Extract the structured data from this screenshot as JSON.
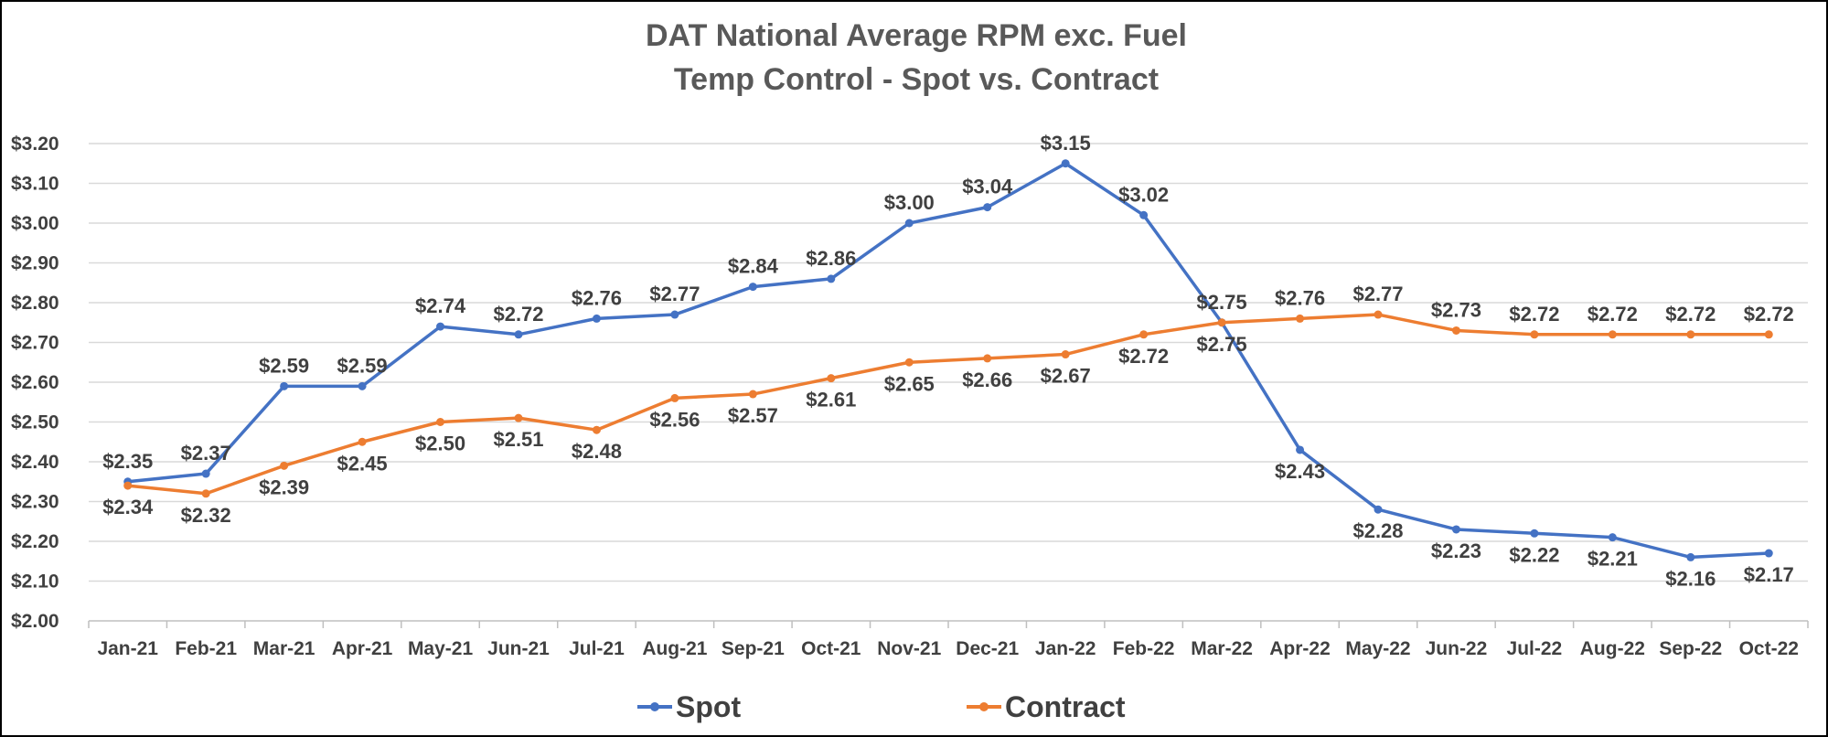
{
  "chart_data": {
    "type": "line",
    "title": "DAT National Average RPM exc. Fuel",
    "subtitle": "Temp Control - Spot vs. Contract",
    "xlabel": "",
    "ylabel": "",
    "categories": [
      "Jan-21",
      "Feb-21",
      "Mar-21",
      "Apr-21",
      "May-21",
      "Jun-21",
      "Jul-21",
      "Aug-21",
      "Sep-21",
      "Oct-21",
      "Nov-21",
      "Dec-21",
      "Jan-22",
      "Feb-22",
      "Mar-22",
      "Apr-22",
      "May-22",
      "Jun-22",
      "Jul-22",
      "Aug-22",
      "Sep-22",
      "Oct-22"
    ],
    "y_ticks": [
      "$2.00",
      "$2.10",
      "$2.20",
      "$2.30",
      "$2.40",
      "$2.50",
      "$2.60",
      "$2.70",
      "$2.80",
      "$2.90",
      "$3.00",
      "$3.10",
      "$3.20"
    ],
    "ylim": [
      2.0,
      3.2
    ],
    "grid": true,
    "legend_position": "bottom",
    "series": [
      {
        "name": "Spot",
        "color": "#4472c4",
        "values": [
          2.35,
          2.37,
          2.59,
          2.59,
          2.74,
          2.72,
          2.76,
          2.77,
          2.84,
          2.86,
          3.0,
          3.04,
          3.15,
          3.02,
          2.75,
          2.43,
          2.28,
          2.23,
          2.22,
          2.21,
          2.16,
          2.17
        ],
        "labels": [
          "$2.35",
          "$2.37",
          "$2.59",
          "$2.59",
          "$2.74",
          "$2.72",
          "$2.76",
          "$2.77",
          "$2.84",
          "$2.86",
          "$3.00",
          "$3.04",
          "$3.15",
          "$3.02",
          "$2.75",
          "$2.43",
          "$2.28",
          "$2.23",
          "$2.22",
          "$2.21",
          "$2.16",
          "$2.17"
        ]
      },
      {
        "name": "Contract",
        "color": "#ed7d31",
        "values": [
          2.34,
          2.32,
          2.39,
          2.45,
          2.5,
          2.51,
          2.48,
          2.56,
          2.57,
          2.61,
          2.65,
          2.66,
          2.67,
          2.72,
          2.75,
          2.76,
          2.77,
          2.73,
          2.72,
          2.72,
          2.72,
          2.72
        ],
        "labels": [
          "$2.34",
          "$2.32",
          "$2.39",
          "$2.45",
          "$2.50",
          "$2.51",
          "$2.48",
          "$2.56",
          "$2.57",
          "$2.61",
          "$2.65",
          "$2.66",
          "$2.67",
          "$2.72",
          "$2.75",
          "$2.76",
          "$2.77",
          "$2.73",
          "$2.72",
          "$2.72",
          "$2.72",
          "$2.72"
        ]
      }
    ]
  }
}
